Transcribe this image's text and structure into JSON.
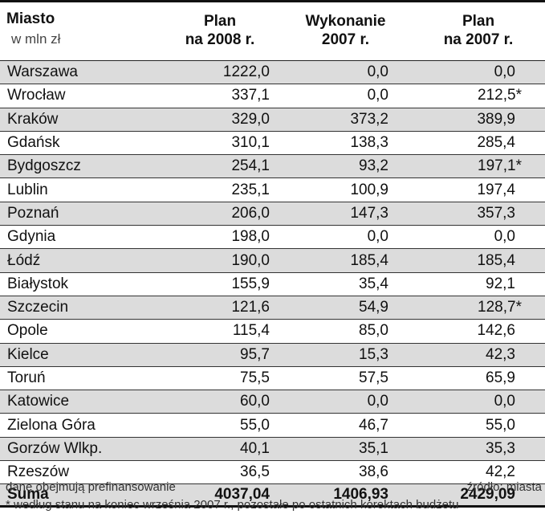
{
  "header": {
    "col1": "Miasto",
    "unit": "w mln zł",
    "col2_line1": "Plan",
    "col2_line2": "na 2008 r.",
    "col3_line1": "Wykonanie",
    "col3_line2": "2007 r.",
    "col4_line1": "Plan",
    "col4_line2": "na 2007 r."
  },
  "rows": [
    {
      "city": "Warszawa",
      "plan2008": "1222,0",
      "exec2007": "0,0",
      "plan2007": "0,0"
    },
    {
      "city": "Wrocław",
      "plan2008": "337,1",
      "exec2007": "0,0",
      "plan2007": "212,5*"
    },
    {
      "city": "Kraków",
      "plan2008": "329,0",
      "exec2007": "373,2",
      "plan2007": "389,9"
    },
    {
      "city": "Gdańsk",
      "plan2008": "310,1",
      "exec2007": "138,3",
      "plan2007": "285,4"
    },
    {
      "city": "Bydgoszcz",
      "plan2008": "254,1",
      "exec2007": "93,2",
      "plan2007": "197,1*"
    },
    {
      "city": "Lublin",
      "plan2008": "235,1",
      "exec2007": "100,9",
      "plan2007": "197,4"
    },
    {
      "city": "Poznań",
      "plan2008": "206,0",
      "exec2007": "147,3",
      "plan2007": "357,3"
    },
    {
      "city": "Gdynia",
      "plan2008": "198,0",
      "exec2007": "0,0",
      "plan2007": "0,0"
    },
    {
      "city": "Łódź",
      "plan2008": "190,0",
      "exec2007": "185,4",
      "plan2007": "185,4"
    },
    {
      "city": "Białystok",
      "plan2008": "155,9",
      "exec2007": "35,4",
      "plan2007": "92,1"
    },
    {
      "city": "Szczecin",
      "plan2008": "121,6",
      "exec2007": "54,9",
      "plan2007": "128,7*"
    },
    {
      "city": "Opole",
      "plan2008": "115,4",
      "exec2007": "85,0",
      "plan2007": "142,6"
    },
    {
      "city": "Kielce",
      "plan2008": "95,7",
      "exec2007": "15,3",
      "plan2007": "42,3"
    },
    {
      "city": "Toruń",
      "plan2008": "75,5",
      "exec2007": "57,5",
      "plan2007": "65,9"
    },
    {
      "city": "Katowice",
      "plan2008": "60,0",
      "exec2007": "0,0",
      "plan2007": "0,0"
    },
    {
      "city": "Zielona Góra",
      "plan2008": "55,0",
      "exec2007": "46,7",
      "plan2007": "55,0"
    },
    {
      "city": "Gorzów Wlkp.",
      "plan2008": "40,1",
      "exec2007": "35,1",
      "plan2007": "35,3"
    },
    {
      "city": "Rzeszów",
      "plan2008": "36,5",
      "exec2007": "38,6",
      "plan2007": "42,2"
    }
  ],
  "total": {
    "city": "Suma",
    "plan2008": "4037,04",
    "exec2007": "1406,93",
    "plan2007": "2429,09"
  },
  "footer": {
    "left": "dane obejmują prefinansowanie",
    "right": "źródło: miasta",
    "note": "* według stanu na koniec września 2007 r., pozostałe po ostatnich korektach budżetu"
  },
  "colors": {
    "shade": "#dcdcdc",
    "rule": "#111111"
  }
}
